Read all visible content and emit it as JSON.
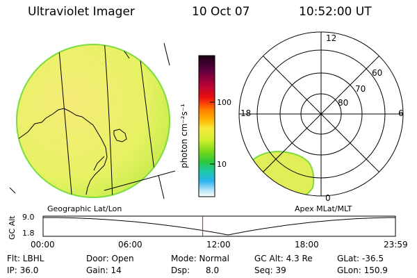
{
  "header": {
    "title": "Ultraviolet Imager",
    "date": "10 Oct 07",
    "time": "10:52:00 UT"
  },
  "colorbar": {
    "unit_label": "photon cm⁻²s⁻¹",
    "ticks": [
      "100",
      "10"
    ],
    "scale": "log"
  },
  "polar": {
    "lat_labels": [
      "80",
      "70",
      "60"
    ],
    "mlt_labels": {
      "top": "12",
      "right": "6",
      "bottom": "0",
      "left": "18"
    }
  },
  "timeline": {
    "left_caption": "Geographic Lat/Lon",
    "right_caption": "Apex  MLat/MLT",
    "ylabel": "GC Alt",
    "y_ticks": [
      "9.0",
      "1.8"
    ],
    "x_ticks": [
      "00:00",
      "06:00",
      "12:00",
      "18:00",
      "23:59"
    ],
    "current_time_hours": 10.87,
    "trace_min_hours": 12.6
  },
  "info": {
    "row1": [
      "Flt: LBHL",
      "Door: Open",
      "Mode: Normal",
      "GC Alt: 4.3 Re",
      "GLat: -36.5"
    ],
    "row2": [
      "IP: 36.0",
      "Gain: 14",
      "Dsp:      8.0",
      "Seq: 39",
      "GLon: 150.9"
    ]
  },
  "colors": {
    "disk_fill": "#e9f566",
    "disk_edge": "#7bdc3c",
    "marker": "#d01818"
  }
}
